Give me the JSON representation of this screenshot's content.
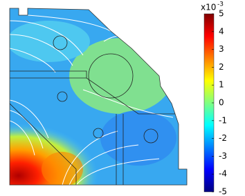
{
  "chart_data": {
    "type": "heatmap",
    "colormap": "jet",
    "scale_label": "x10",
    "scale_exponent": "-3",
    "ylim": [
      -5,
      5
    ],
    "yticks": [
      5,
      4,
      3,
      2,
      1,
      0,
      -1,
      -2,
      -3,
      -4,
      -5
    ]
  }
}
